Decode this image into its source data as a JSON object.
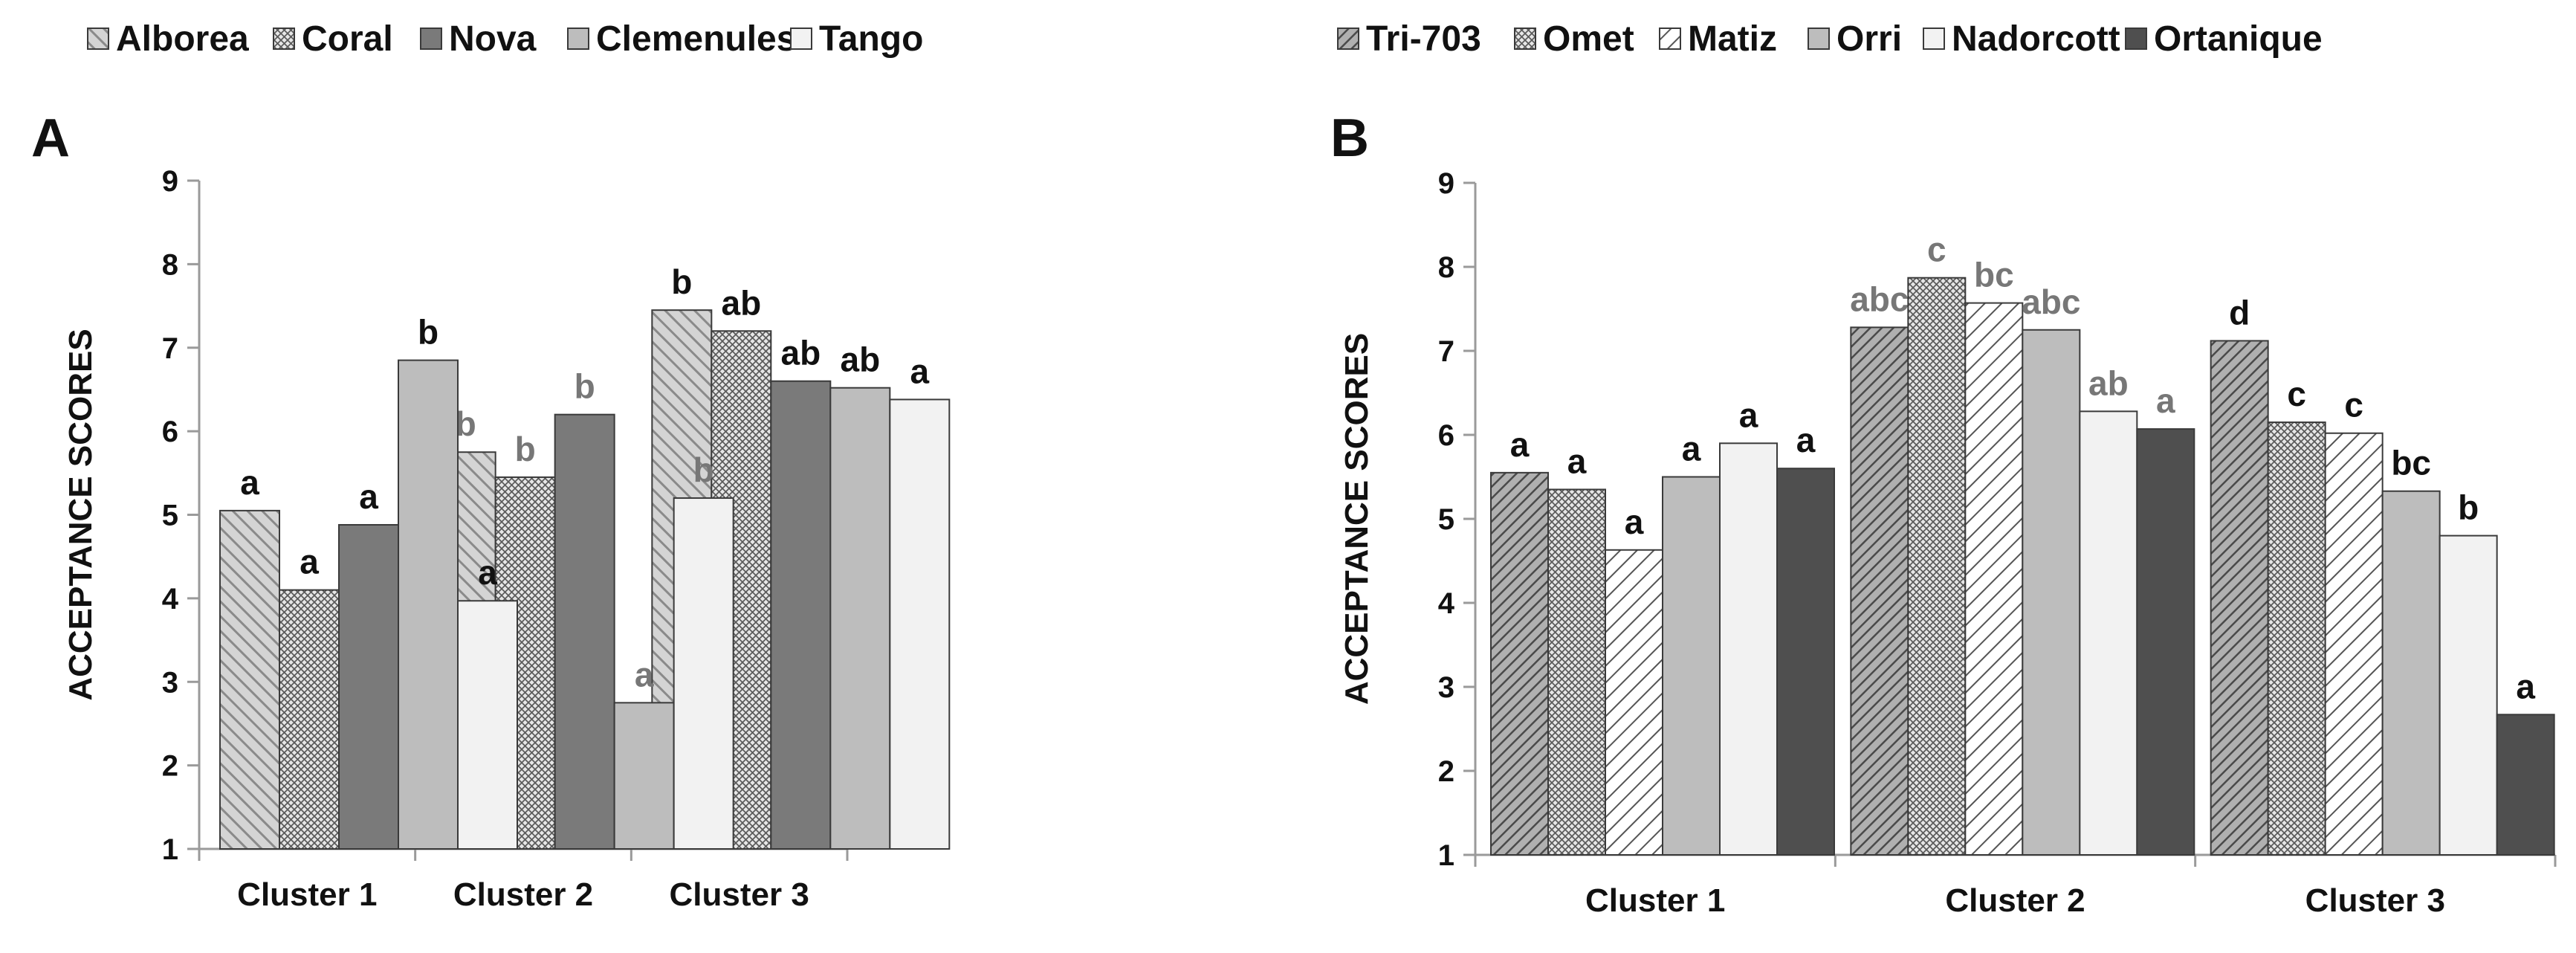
{
  "colors": {
    "axis": "#9a9a9a",
    "black_label": "#111111",
    "gray_label": "#777777",
    "bar_edge": "#3a3a3a"
  },
  "chart_data": [
    {
      "id": "A",
      "type": "bar",
      "panel_label": "A",
      "ylabel": "ACCEPTANCE SCORES",
      "ylim": [
        1,
        9
      ],
      "yticks": [
        "1",
        "2",
        "3",
        "4",
        "5",
        "6",
        "7",
        "8",
        "9"
      ],
      "categories": [
        "Cluster 1",
        "Cluster 2",
        "Cluster 3"
      ],
      "legend_position": "top",
      "series": [
        {
          "name": "Alborea",
          "style": "diag",
          "values": [
            5.05,
            5.75,
            7.45
          ],
          "labels": [
            "a",
            "b",
            "b"
          ],
          "label_colors": [
            "black",
            "gray",
            "black"
          ]
        },
        {
          "name": "Coral",
          "style": "cross",
          "values": [
            4.1,
            5.45,
            7.2
          ],
          "labels": [
            "a",
            "b",
            "ab"
          ],
          "label_colors": [
            "black",
            "gray",
            "black"
          ]
        },
        {
          "name": "Nova",
          "style": "solid-mid",
          "values": [
            4.88,
            6.2,
            6.6
          ],
          "labels": [
            "a",
            "b",
            "ab"
          ],
          "label_colors": [
            "black",
            "gray",
            "black"
          ]
        },
        {
          "name": "Clemenules",
          "style": "solid-light",
          "values": [
            6.85,
            2.75,
            6.52
          ],
          "labels": [
            "b",
            "a",
            "ab"
          ],
          "label_colors": [
            "black",
            "gray",
            "black"
          ]
        },
        {
          "name": "Tango",
          "style": "solid-white",
          "values": [
            3.97,
            5.2,
            6.38
          ],
          "labels": [
            "a",
            "b",
            "a"
          ],
          "label_colors": [
            "black",
            "gray",
            "black"
          ]
        }
      ]
    },
    {
      "id": "B",
      "type": "bar",
      "panel_label": "B",
      "ylabel": "ACCEPTANCE SCORES",
      "ylim": [
        1,
        9
      ],
      "yticks": [
        "1",
        "2",
        "3",
        "4",
        "5",
        "6",
        "7",
        "8",
        "9"
      ],
      "categories": [
        "Cluster 1",
        "Cluster 2",
        "Cluster 3"
      ],
      "legend_position": "top",
      "series": [
        {
          "name": "Tri-703",
          "style": "diag-dense",
          "values": [
            5.55,
            7.28,
            7.12
          ],
          "labels": [
            "a",
            "abc",
            "d"
          ],
          "label_colors": [
            "black",
            "gray",
            "black"
          ]
        },
        {
          "name": "Omet",
          "style": "cross",
          "values": [
            5.35,
            7.87,
            6.15
          ],
          "labels": [
            "a",
            "c",
            "c"
          ],
          "label_colors": [
            "black",
            "gray",
            "black"
          ]
        },
        {
          "name": "Matiz",
          "style": "diag-white",
          "values": [
            4.63,
            7.57,
            6.02
          ],
          "labels": [
            "a",
            "bc",
            "c"
          ],
          "label_colors": [
            "black",
            "gray",
            "black"
          ]
        },
        {
          "name": "Orri",
          "style": "solid-light",
          "values": [
            5.5,
            7.25,
            5.33
          ],
          "labels": [
            "a",
            "abc",
            "bc"
          ],
          "label_colors": [
            "black",
            "gray",
            "black"
          ]
        },
        {
          "name": "Nadorcott",
          "style": "solid-white",
          "values": [
            5.9,
            6.28,
            4.8
          ],
          "labels": [
            "a",
            "ab",
            "b"
          ],
          "label_colors": [
            "black",
            "gray",
            "black"
          ]
        },
        {
          "name": "Ortanique",
          "style": "solid-dark",
          "values": [
            5.6,
            6.07,
            2.67
          ],
          "labels": [
            "a",
            "a",
            "a"
          ],
          "label_colors": [
            "black",
            "gray",
            "black"
          ]
        }
      ]
    }
  ]
}
